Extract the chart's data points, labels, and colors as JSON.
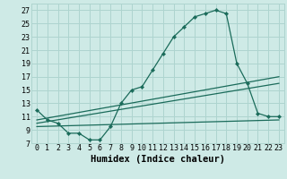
{
  "background_color": "#ceeae6",
  "grid_color": "#aed4cf",
  "line_color": "#1a6b5a",
  "xlabel": "Humidex (Indice chaleur)",
  "xlabel_fontsize": 7.5,
  "tick_fontsize": 6,
  "xlim": [
    -0.5,
    23.5
  ],
  "ylim": [
    7,
    28
  ],
  "yticks": [
    7,
    9,
    11,
    13,
    15,
    17,
    19,
    21,
    23,
    25,
    27
  ],
  "xticks": [
    0,
    1,
    2,
    3,
    4,
    5,
    6,
    7,
    8,
    9,
    10,
    11,
    12,
    13,
    14,
    15,
    16,
    17,
    18,
    19,
    20,
    21,
    22,
    23
  ],
  "main_line_x": [
    0,
    1,
    2,
    3,
    4,
    5,
    6,
    7,
    8,
    9,
    10,
    11,
    12,
    13,
    14,
    15,
    16,
    17,
    18,
    19,
    20,
    21,
    22,
    23
  ],
  "main_line_y": [
    12,
    10.5,
    10,
    8.5,
    8.5,
    7.5,
    7.5,
    9.5,
    13,
    15,
    15.5,
    18,
    20.5,
    23,
    24.5,
    26,
    26.5,
    27,
    26.5,
    19,
    16,
    11.5,
    11,
    11
  ],
  "line2_x": [
    0,
    23
  ],
  "line2_y": [
    10.5,
    17
  ],
  "line3_x": [
    0,
    23
  ],
  "line3_y": [
    10,
    16
  ],
  "line4_x": [
    0,
    23
  ],
  "line4_y": [
    9.5,
    10.5
  ]
}
